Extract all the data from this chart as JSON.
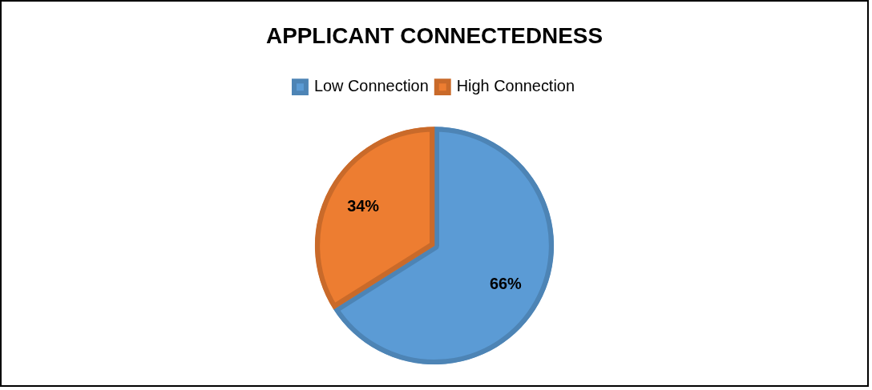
{
  "chart_data": {
    "type": "pie",
    "title": "APPLICANT CONNECTEDNESS",
    "categories": [
      "Low Connection",
      "High Connection"
    ],
    "values": [
      66,
      34
    ],
    "colors": [
      "#5b9bd5",
      "#ed7d31"
    ],
    "value_labels": [
      "66%",
      "34%"
    ],
    "legend": "top"
  }
}
